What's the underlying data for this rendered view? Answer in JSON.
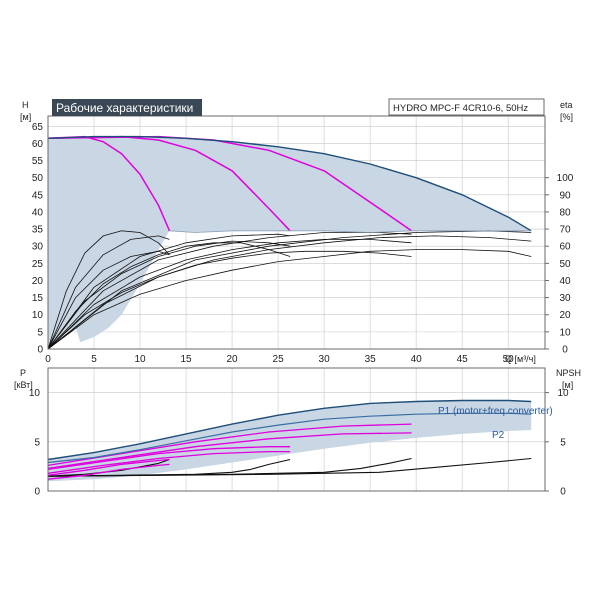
{
  "chart_data": [
    {
      "type": "line",
      "title": "Рабочие характеристики",
      "model": "HYDRO MPC-F 4CR10-6, 50Hz",
      "xlabel": "Q [м³/ч]",
      "ylabel": [
        "H",
        "[м]"
      ],
      "y2label": [
        "eta",
        "[%]"
      ],
      "xlim": [
        0,
        54
      ],
      "ylim": [
        0,
        68
      ],
      "y2lim": [
        0,
        136
      ],
      "xticks": [
        0,
        5,
        10,
        15,
        20,
        25,
        30,
        35,
        40,
        45,
        50
      ],
      "yticks": [
        0,
        5,
        10,
        15,
        20,
        25,
        30,
        35,
        40,
        45,
        50,
        55,
        60,
        65
      ],
      "y2ticks": [
        0,
        10,
        20,
        30,
        40,
        50,
        60,
        70,
        80,
        90,
        100
      ],
      "grid": true,
      "colors": {
        "envelope": "#1f4e79",
        "fill": "#c9d6e3",
        "speed_curves": "#e000e0",
        "eta": "#111111",
        "badge": "#3a4754"
      },
      "envelope": {
        "x": [
          0,
          5,
          10,
          15,
          20,
          25,
          30,
          35,
          40,
          45,
          50,
          52.5
        ],
        "y": [
          61.5,
          62,
          62,
          61.5,
          60.5,
          59,
          57,
          54,
          50,
          45,
          38.5,
          34.5
        ]
      },
      "operating_floor": {
        "x": [
          13.2,
          16,
          20,
          26.3,
          30,
          35,
          39.5,
          45,
          50,
          52.5
        ],
        "y": [
          34.5,
          34,
          34.5,
          34.5,
          34.5,
          34,
          34.5,
          34.5,
          34.5,
          34.5
        ]
      },
      "lower_limit": {
        "x": [
          0,
          1,
          2,
          3,
          3.5,
          5,
          6.5,
          8,
          10,
          12,
          13.2
        ],
        "y": [
          0,
          3,
          5,
          6.5,
          2,
          3.5,
          6,
          10,
          19,
          29,
          34.5
        ]
      },
      "speed_curves": [
        {
          "x": [
            0,
            4,
            6,
            8,
            10,
            12,
            13.2
          ],
          "y": [
            61.5,
            62,
            60.5,
            57,
            51,
            42,
            34.5
          ]
        },
        {
          "x": [
            0,
            8,
            12,
            16,
            20,
            24,
            26.3
          ],
          "y": [
            61.5,
            62,
            61,
            58,
            52,
            41,
            34.5
          ]
        },
        {
          "x": [
            0,
            12,
            18,
            24,
            30,
            36,
            39.5
          ],
          "y": [
            61.5,
            62,
            61,
            58,
            52,
            41,
            34.5
          ]
        }
      ],
      "eta_curves": [
        {
          "x": [
            0,
            2,
            4,
            6,
            8,
            10,
            12,
            13.2
          ],
          "y": [
            0,
            34,
            56,
            66,
            69,
            68,
            62,
            55
          ]
        },
        {
          "x": [
            0,
            3,
            6,
            9,
            12,
            15,
            18,
            21,
            24,
            26.3
          ],
          "y": [
            0,
            22,
            38,
            48,
            55,
            60,
            62,
            62,
            58,
            54
          ]
        },
        {
          "x": [
            0,
            4,
            8,
            12,
            16,
            20,
            24,
            28,
            32,
            36,
            39.5
          ],
          "y": [
            0,
            20,
            33,
            42,
            49,
            53,
            56,
            57,
            57,
            56,
            54
          ]
        },
        {
          "x": [
            0,
            5,
            10,
            15,
            20,
            25,
            30,
            35,
            40,
            45,
            50,
            52.5
          ],
          "y": [
            0,
            20,
            32,
            40,
            46,
            51,
            54,
            57,
            58,
            58,
            57,
            54
          ]
        },
        {
          "x": [
            0,
            3,
            6,
            9,
            12,
            13.2
          ],
          "y": [
            0,
            30,
            46,
            54,
            57,
            55
          ]
        },
        {
          "x": [
            0,
            4,
            8,
            12,
            16,
            20,
            24,
            26.3
          ],
          "y": [
            0,
            28,
            44,
            54,
            60,
            63,
            62,
            60
          ]
        },
        {
          "x": [
            0,
            5,
            10,
            15,
            20,
            25,
            30,
            35,
            39.5
          ],
          "y": [
            0,
            26,
            42,
            52,
            58,
            62,
            64,
            64,
            62
          ]
        },
        {
          "x": [
            0,
            6,
            12,
            18,
            24,
            30,
            36,
            42,
            48,
            52.5
          ],
          "y": [
            0,
            26,
            42,
            52,
            58,
            62,
            65,
            66,
            65,
            63
          ]
        },
        {
          "x": [
            0,
            3,
            6,
            9,
            12,
            13.2
          ],
          "y": [
            0,
            36,
            55,
            64,
            66,
            64
          ]
        },
        {
          "x": [
            0,
            5,
            10,
            15,
            20,
            25,
            26.3
          ],
          "y": [
            0,
            36,
            54,
            62,
            66,
            67,
            66
          ]
        },
        {
          "x": [
            0,
            6,
            12,
            18,
            24,
            30,
            36,
            39.5
          ],
          "y": [
            0,
            34,
            52,
            60,
            65,
            68,
            68,
            67
          ]
        },
        {
          "x": [
            0,
            8,
            16,
            24,
            32,
            40,
            48,
            52.5
          ],
          "y": [
            0,
            34,
            52,
            60,
            65,
            68,
            69,
            68
          ]
        }
      ]
    },
    {
      "type": "line",
      "ylabel": [
        "P",
        "[кВт]"
      ],
      "y2label": [
        "NPSH",
        "[м]"
      ],
      "xlim": [
        0,
        54
      ],
      "ylim": [
        0,
        12.5
      ],
      "y2lim": [
        0,
        12.5
      ],
      "yticks": [
        0,
        5,
        10
      ],
      "y2ticks": [
        0,
        5,
        10
      ],
      "grid": true,
      "colors": {
        "P1": "#1f4e79",
        "P2": "#3a6ea5",
        "fill": "#c9d6e3",
        "speed_curves": "#e000e0",
        "npsh": "#111111"
      },
      "series": [
        {
          "name": "P1 (motor+freq.converter)",
          "x": [
            0,
            5,
            10,
            15,
            20,
            25,
            30,
            35,
            40,
            45,
            50,
            52.5
          ],
          "y": [
            3.2,
            3.9,
            4.8,
            5.8,
            6.8,
            7.7,
            8.4,
            8.9,
            9.1,
            9.2,
            9.2,
            9.1
          ]
        },
        {
          "name": "P2",
          "x": [
            0,
            5,
            10,
            15,
            20,
            25,
            30,
            35,
            40,
            45,
            50,
            52.5
          ],
          "y": [
            2.9,
            3.4,
            4.2,
            5.1,
            6,
            6.7,
            7.3,
            7.6,
            7.8,
            7.9,
            7.9,
            7.8
          ]
        }
      ],
      "fill_band": {
        "x": [
          0,
          5,
          10,
          15,
          20,
          25,
          30,
          35,
          40,
          45,
          50,
          52.5
        ],
        "upper": [
          3.2,
          3.9,
          4.8,
          5.8,
          6.8,
          7.7,
          8.4,
          8.9,
          9.1,
          9.2,
          9.2,
          9.1
        ],
        "lower": [
          1,
          1.2,
          1.6,
          2.2,
          2.9,
          3.6,
          4.3,
          4.9,
          5.4,
          5.8,
          6.1,
          6.2
        ]
      },
      "speed_curves": [
        {
          "x": [
            0,
            4,
            8,
            12,
            13.2
          ],
          "y": [
            1.6,
            2.1,
            2.7,
            3.1,
            3.2
          ]
        },
        {
          "x": [
            0,
            6,
            12,
            18,
            24,
            26.3
          ],
          "y": [
            2.2,
            3,
            3.8,
            4.3,
            4.5,
            4.5
          ]
        },
        {
          "x": [
            0,
            8,
            16,
            24,
            32,
            39.5
          ],
          "y": [
            2.6,
            3.8,
            5,
            6,
            6.6,
            6.8
          ]
        },
        {
          "x": [
            0,
            4,
            8,
            12,
            13.2
          ],
          "y": [
            1.2,
            1.6,
            2.2,
            2.6,
            2.7
          ]
        },
        {
          "x": [
            0,
            6,
            12,
            18,
            24,
            26.3
          ],
          "y": [
            1.8,
            2.6,
            3.3,
            3.8,
            4,
            4
          ]
        },
        {
          "x": [
            0,
            8,
            16,
            24,
            32,
            39.5
          ],
          "y": [
            2.3,
            3.4,
            4.5,
            5.3,
            5.8,
            5.9
          ]
        }
      ],
      "npsh_curves": [
        {
          "x": [
            0,
            4,
            8,
            12,
            13.2
          ],
          "y": [
            1.5,
            1.7,
            2.1,
            2.8,
            3.2
          ]
        },
        {
          "x": [
            0,
            8,
            16,
            20,
            22,
            24,
            26.3
          ],
          "y": [
            1.5,
            1.6,
            1.7,
            1.9,
            2.2,
            2.7,
            3.2
          ]
        },
        {
          "x": [
            0,
            10,
            20,
            30,
            34,
            37,
            39.5
          ],
          "y": [
            1.5,
            1.6,
            1.7,
            1.9,
            2.3,
            2.8,
            3.3
          ]
        },
        {
          "x": [
            0,
            12,
            24,
            36,
            42,
            48,
            52.5
          ],
          "y": [
            1.5,
            1.6,
            1.7,
            1.9,
            2.4,
            2.9,
            3.3
          ]
        }
      ]
    }
  ]
}
